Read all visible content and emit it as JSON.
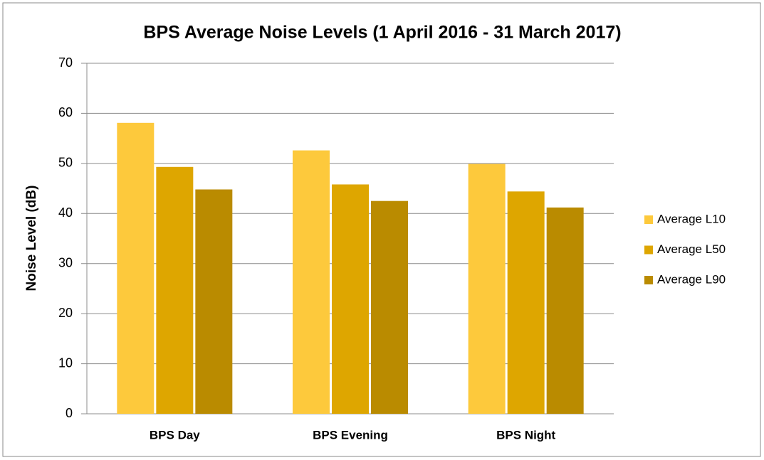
{
  "chart_data": {
    "type": "bar",
    "title": "BPS Average Noise Levels (1 April 2016 - 31 March 2017)",
    "y_label": "Noise Level (dB)",
    "categories": [
      "BPS Day",
      "BPS Evening",
      "BPS Night"
    ],
    "series": [
      {
        "name": "Average L10",
        "color": "#fdc93c",
        "values": [
          58.1,
          52.6,
          49.9
        ]
      },
      {
        "name": "Average L50",
        "color": "#dea600",
        "values": [
          49.3,
          45.8,
          44.4
        ]
      },
      {
        "name": "Average L90",
        "color": "#ba8b00",
        "values": [
          44.8,
          42.5,
          41.2
        ]
      }
    ],
    "ylim": [
      0,
      70
    ],
    "yticks": [
      0,
      10,
      20,
      30,
      40,
      50,
      60,
      70
    ],
    "grid": true,
    "legend": "right"
  }
}
